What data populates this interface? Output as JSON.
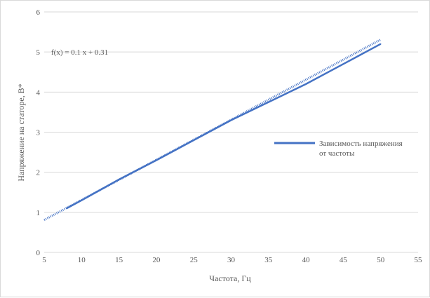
{
  "chart_data": {
    "type": "line",
    "xlabel": "Частота, Гц",
    "ylabel": "Напряжение на статоре, В*",
    "xlim": [
      5,
      55
    ],
    "ylim": [
      0,
      6
    ],
    "x_ticks": [
      "5",
      "10",
      "15",
      "20",
      "25",
      "30",
      "35",
      "40",
      "45",
      "50",
      "55"
    ],
    "y_ticks": [
      "0",
      "1",
      "2",
      "3",
      "4",
      "5",
      "6"
    ],
    "grid": true,
    "legend_position": "right",
    "series": [
      {
        "name": "Зависимость напряжения от частоты",
        "color": "#4472c4",
        "x": [
          8,
          10,
          15,
          20,
          25,
          30,
          35,
          40,
          45,
          50
        ],
        "y": [
          1.1,
          1.3,
          1.82,
          2.3,
          2.8,
          3.3,
          3.75,
          4.2,
          4.7,
          5.2
        ]
      }
    ],
    "trendline": {
      "label": "f(x) = 0.1 x + 0.31",
      "slope": 0.1,
      "intercept": 0.31,
      "x_range": [
        5,
        50
      ],
      "style": "dotted"
    }
  }
}
